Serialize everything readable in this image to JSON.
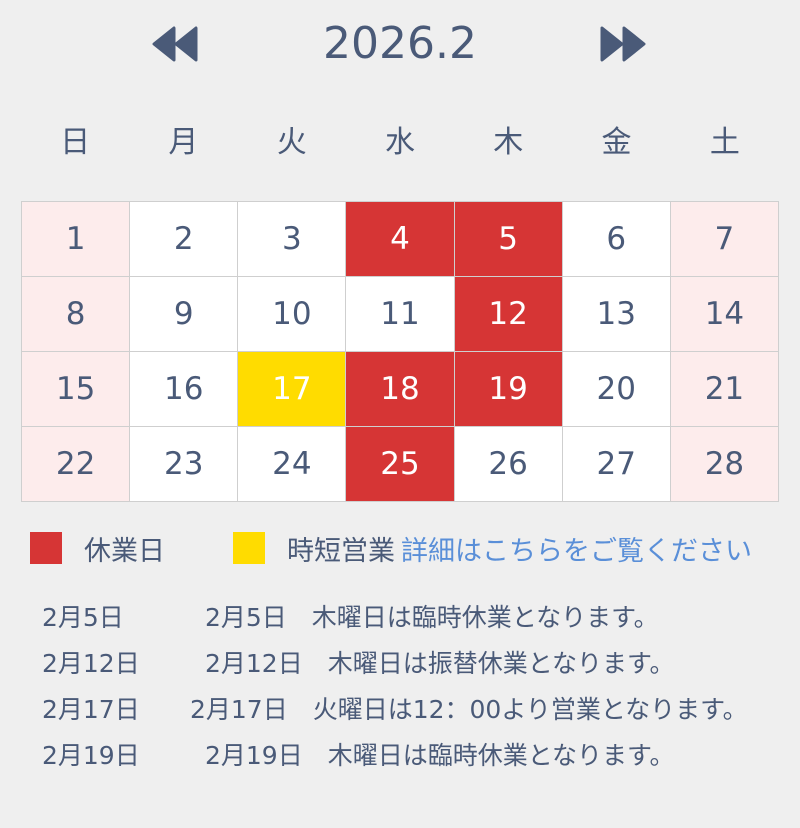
{
  "header": {
    "title": "2026.2",
    "prev_icon": "double-chevron-left-icon",
    "next_icon": "double-chevron-right-icon"
  },
  "weekdays": [
    "日",
    "月",
    "火",
    "水",
    "木",
    "金",
    "土"
  ],
  "colors": {
    "closed": "#d63535",
    "short_hours": "#ffdc00",
    "weekend": "#fdecec",
    "text": "#4a5a78",
    "link": "#5a8fd8"
  },
  "days": [
    {
      "n": "1",
      "type": "weekend"
    },
    {
      "n": "2",
      "type": "normal"
    },
    {
      "n": "3",
      "type": "normal"
    },
    {
      "n": "4",
      "type": "closed"
    },
    {
      "n": "5",
      "type": "closed"
    },
    {
      "n": "6",
      "type": "normal"
    },
    {
      "n": "7",
      "type": "weekend"
    },
    {
      "n": "8",
      "type": "weekend"
    },
    {
      "n": "9",
      "type": "normal"
    },
    {
      "n": "10",
      "type": "normal"
    },
    {
      "n": "11",
      "type": "normal"
    },
    {
      "n": "12",
      "type": "closed"
    },
    {
      "n": "13",
      "type": "normal"
    },
    {
      "n": "14",
      "type": "weekend"
    },
    {
      "n": "15",
      "type": "weekend"
    },
    {
      "n": "16",
      "type": "normal"
    },
    {
      "n": "17",
      "type": "short"
    },
    {
      "n": "18",
      "type": "closed"
    },
    {
      "n": "19",
      "type": "closed"
    },
    {
      "n": "20",
      "type": "normal"
    },
    {
      "n": "21",
      "type": "weekend"
    },
    {
      "n": "22",
      "type": "weekend"
    },
    {
      "n": "23",
      "type": "normal"
    },
    {
      "n": "24",
      "type": "normal"
    },
    {
      "n": "25",
      "type": "closed"
    },
    {
      "n": "26",
      "type": "normal"
    },
    {
      "n": "27",
      "type": "normal"
    },
    {
      "n": "28",
      "type": "weekend"
    }
  ],
  "legend": {
    "closed_label": "休業日",
    "short_label": "時短営業",
    "details_link": "詳細はこちらをご覧ください"
  },
  "notes": [
    {
      "date": "2月5日",
      "text": "2月5日　木曜日は臨時休業となります。"
    },
    {
      "date": "2月12日",
      "text": "2月12日　木曜日は振替休業となります。"
    },
    {
      "date": "2月17日",
      "text": "2月17日　火曜日は12：00より営業となります。"
    },
    {
      "date": "2月19日",
      "text": "2月19日　木曜日は臨時休業となります。"
    }
  ]
}
